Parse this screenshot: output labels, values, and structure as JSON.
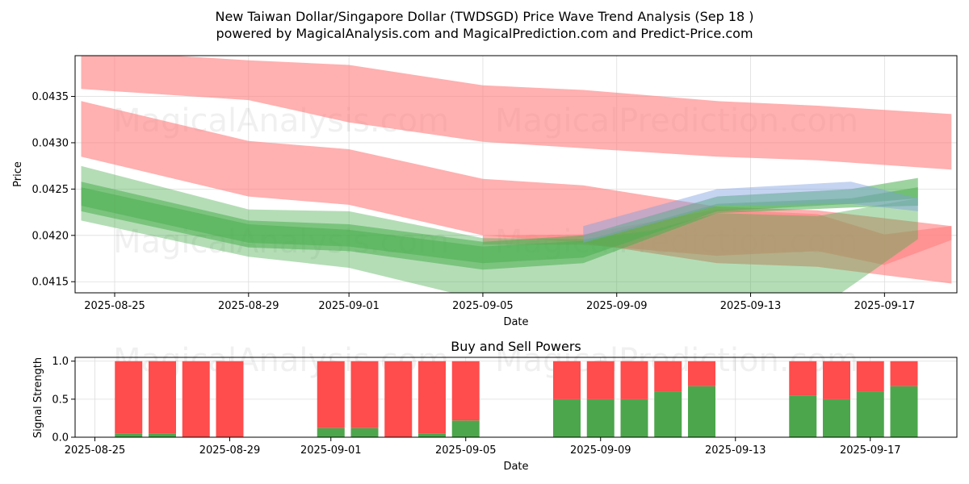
{
  "header": {
    "title": "New Taiwan Dollar/Singapore Dollar (TWDSGD) Price Wave Trend Analysis (Sep 18 )",
    "subtitle": "powered by MagicalAnalysis.com and MagicalPrediction.com and Predict-Price.com"
  },
  "watermark": {
    "left": "MagicalAnalysis.com",
    "right": "MagicalPrediction.com"
  },
  "colors": {
    "bear_band": "#ff7f7f",
    "bull_band": "#4caf50",
    "blue_band": "#7f9fdf",
    "buy_bar": "#4ca64c",
    "sell_bar": "#ff4c4c"
  },
  "chart_data": [
    {
      "type": "area",
      "title": "",
      "xlabel": "Date",
      "ylabel": "Price",
      "x_ticks": [
        "2025-08-25",
        "2025-08-29",
        "2025-09-01",
        "2025-09-05",
        "2025-09-09",
        "2025-09-13",
        "2025-09-17"
      ],
      "y_ticks": [
        "0.0415",
        "0.0420",
        "0.0425",
        "0.0430",
        "0.0435"
      ],
      "ylim": [
        0.04138,
        0.04394
      ],
      "grid": true,
      "series": [
        {
          "kind": "bear",
          "x": [
            "2025-08-24",
            "2025-08-29",
            "2025-09-01",
            "2025-09-05",
            "2025-09-08",
            "2025-09-12",
            "2025-09-15",
            "2025-09-19"
          ],
          "upper": [
            0.044,
            0.04389,
            0.04384,
            0.04362,
            0.04357,
            0.04345,
            0.0434,
            0.04331
          ],
          "lower": [
            0.04358,
            0.04346,
            0.04322,
            0.04301,
            0.04294,
            0.04285,
            0.04281,
            0.04271
          ]
        },
        {
          "kind": "bear",
          "x": [
            "2025-08-24",
            "2025-08-29",
            "2025-09-01",
            "2025-09-05",
            "2025-09-08",
            "2025-09-12",
            "2025-09-15",
            "2025-09-19"
          ],
          "upper": [
            0.04345,
            0.04302,
            0.04293,
            0.04261,
            0.04254,
            0.04231,
            0.04227,
            0.0421
          ],
          "lower": [
            0.04285,
            0.04242,
            0.04233,
            0.042,
            0.04192,
            0.0417,
            0.04166,
            0.04148
          ]
        },
        {
          "kind": "bear",
          "x": [
            "2025-09-05",
            "2025-09-08",
            "2025-09-12",
            "2025-09-15",
            "2025-09-17",
            "2025-09-19"
          ],
          "upper": [
            0.042,
            0.04201,
            0.04228,
            0.04223,
            0.04201,
            0.0421
          ],
          "lower": [
            0.0419,
            0.0419,
            0.04178,
            0.04183,
            0.04168,
            0.04195
          ]
        },
        {
          "kind": "bull",
          "x": [
            "2025-08-24",
            "2025-08-29",
            "2025-09-01",
            "2025-09-05",
            "2025-09-08",
            "2025-09-10",
            "2025-09-12",
            "2025-09-15",
            "2025-09-18"
          ],
          "upper": [
            0.04275,
            0.04228,
            0.04226,
            0.04197,
            0.04196,
            0.04205,
            0.04224,
            0.04221,
            0.0424
          ],
          "lower": [
            0.04216,
            0.04177,
            0.04165,
            0.0413,
            0.0412,
            0.0412,
            0.0412,
            0.0412,
            0.04196
          ]
        },
        {
          "kind": "bull",
          "x": [
            "2025-08-24",
            "2025-08-29",
            "2025-09-01",
            "2025-09-05",
            "2025-09-08",
            "2025-09-12",
            "2025-09-16",
            "2025-09-18"
          ],
          "upper": [
            0.04258,
            0.04216,
            0.04212,
            0.04193,
            0.042,
            0.04242,
            0.0425,
            0.04262
          ],
          "lower": [
            0.04226,
            0.04187,
            0.04183,
            0.04163,
            0.0417,
            0.04224,
            0.0423,
            0.04232
          ]
        },
        {
          "kind": "bull",
          "x": [
            "2025-08-24",
            "2025-08-29",
            "2025-09-01",
            "2025-09-05",
            "2025-09-08",
            "2025-09-12",
            "2025-09-16",
            "2025-09-18"
          ],
          "upper": [
            0.04252,
            0.04212,
            0.04206,
            0.04188,
            0.04194,
            0.04234,
            0.0424,
            0.04252
          ],
          "lower": [
            0.04232,
            0.04192,
            0.04188,
            0.0417,
            0.04176,
            0.04226,
            0.04234,
            0.0424
          ]
        },
        {
          "kind": "blue",
          "x": [
            "2025-09-08",
            "2025-09-12",
            "2025-09-16",
            "2025-09-18"
          ],
          "upper": [
            0.0421,
            0.0425,
            0.04258,
            0.0424
          ],
          "lower": [
            0.04192,
            0.04232,
            0.04234,
            0.04226
          ]
        }
      ]
    },
    {
      "type": "bar",
      "title": "Buy and Sell Powers",
      "xlabel": "Date",
      "ylabel": "Signal Strength",
      "x_ticks": [
        "2025-08-25",
        "2025-08-29",
        "2025-09-01",
        "2025-09-05",
        "2025-09-09",
        "2025-09-13",
        "2025-09-17"
      ],
      "y_ticks": [
        "0.0",
        "0.5",
        "1.0"
      ],
      "ylim": [
        0,
        1.05
      ],
      "grid": true,
      "categories": [
        "2025-08-26",
        "2025-08-27",
        "2025-08-28",
        "2025-08-29",
        "2025-09-01",
        "2025-09-02",
        "2025-09-03",
        "2025-09-04",
        "2025-09-05",
        "2025-09-08",
        "2025-09-09",
        "2025-09-10",
        "2025-09-11",
        "2025-09-12",
        "2025-09-15",
        "2025-09-16",
        "2025-09-17",
        "2025-09-18"
      ],
      "series": [
        {
          "name": "Buy",
          "values": [
            0.05,
            0.05,
            0.0,
            0.0,
            0.12,
            0.12,
            0.0,
            0.05,
            0.22,
            0.5,
            0.5,
            0.5,
            0.6,
            0.67,
            0.55,
            0.5,
            0.6,
            0.67
          ]
        },
        {
          "name": "Sell",
          "values": [
            0.95,
            0.95,
            1.0,
            1.0,
            0.88,
            0.88,
            1.0,
            0.95,
            0.78,
            0.5,
            0.5,
            0.5,
            0.4,
            0.33,
            0.45,
            0.5,
            0.4,
            0.33
          ]
        }
      ]
    }
  ]
}
